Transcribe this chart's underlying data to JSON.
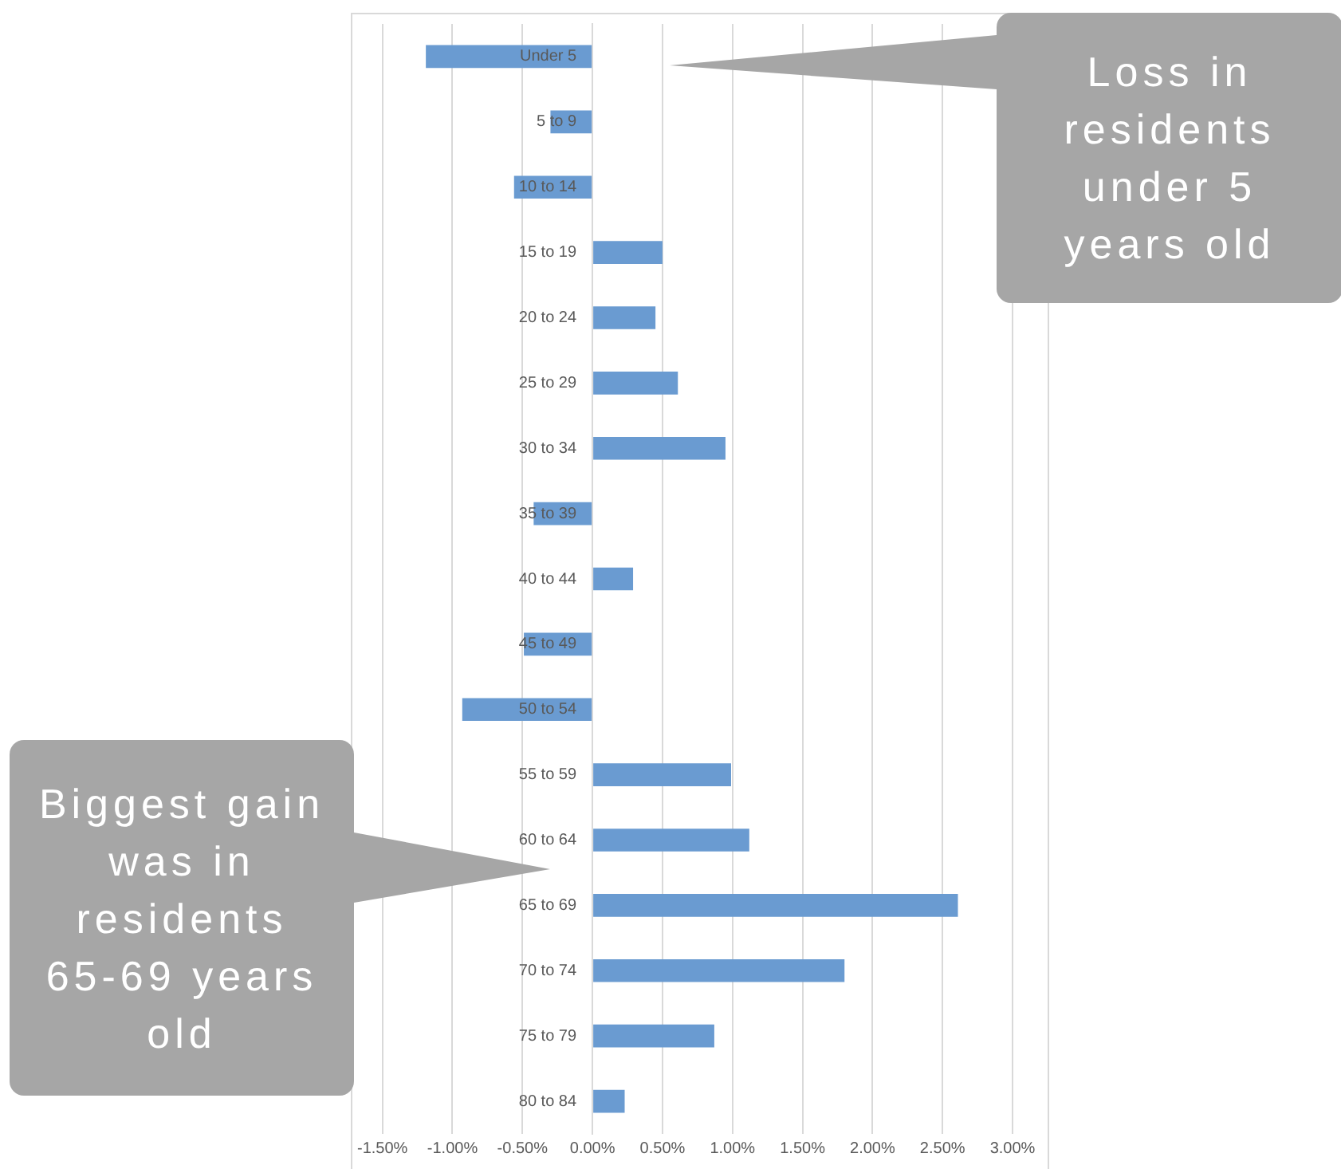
{
  "chart_data": {
    "type": "bar",
    "orientation": "horizontal",
    "categories": [
      "Under 5",
      "5 to 9",
      "10 to 14",
      "15 to 19",
      "20 to 24",
      "25 to 29",
      "30 to 34",
      "35 to 39",
      "40 to 44",
      "45 to 49",
      "50 to 54",
      "55 to 59",
      "60 to 64",
      "65 to 69",
      "70 to 74",
      "75 to 79",
      "80 to 84"
    ],
    "values": [
      -1.19,
      -0.3,
      -0.56,
      0.5,
      0.45,
      0.61,
      0.95,
      -0.42,
      0.29,
      -0.49,
      -0.93,
      0.99,
      1.12,
      2.61,
      1.8,
      0.87,
      0.23
    ],
    "color": "#6a9bd1",
    "xlim": [
      -1.5,
      3.0
    ],
    "xticks": [
      {
        "value": -1.5,
        "label": "-1.50%"
      },
      {
        "value": -1.0,
        "label": "-1.00%"
      },
      {
        "value": -0.5,
        "label": "-0.50%"
      },
      {
        "value": 0,
        "label": "0.00%"
      },
      {
        "value": 0.5,
        "label": "0.50%"
      },
      {
        "value": 1.0,
        "label": "1.00%"
      },
      {
        "value": 1.5,
        "label": "1.50%"
      },
      {
        "value": 2.0,
        "label": "2.00%"
      },
      {
        "value": 2.5,
        "label": "2.50%"
      },
      {
        "value": 3.0,
        "label": "3.00%"
      }
    ],
    "grid": "x",
    "annotations": [
      "Loss in residents under 5 years old",
      "Biggest gain was in residents 65-69 years old"
    ]
  }
}
